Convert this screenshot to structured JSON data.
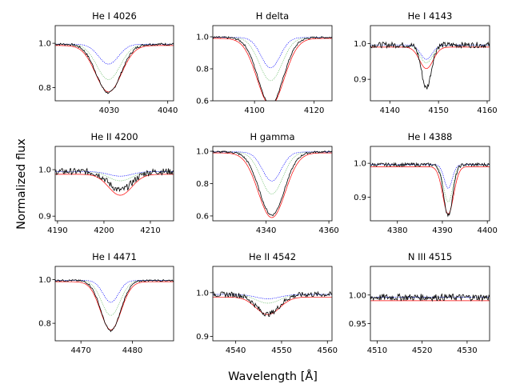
{
  "chart_data": {
    "type": "line",
    "figure_xlabel": "Wavelength [Å]",
    "figure_ylabel": "Normalized flux",
    "series_styles": [
      {
        "name": "observed",
        "color": "#000000",
        "style": "solid"
      },
      {
        "name": "model",
        "color": "#ff0000",
        "style": "solid"
      },
      {
        "name": "model-alt",
        "color": "#0000ff",
        "style": "dotted"
      },
      {
        "name": "model-alt2",
        "color": "#6fbf6f",
        "style": "dotted"
      }
    ],
    "panels": [
      {
        "title": "He I 4026",
        "xlim": [
          4020.8,
          4041
        ],
        "ylim": [
          0.74,
          1.08
        ],
        "xticks": [
          4030,
          4040
        ],
        "xticklabels": [
          "4030",
          "4040"
        ],
        "yticks": [
          0.8,
          1.0
        ],
        "yticklabels": [
          "0.8",
          "1.0"
        ],
        "center": 4029.9,
        "lines": {
          "observed": [
            0.22,
            2.1,
            0.005
          ],
          "model": [
            0.21,
            2.2,
            0
          ],
          "model-alt": [
            0.09,
            1.7,
            0
          ],
          "model-alt2": [
            0.16,
            2.0,
            0
          ]
        }
      },
      {
        "title": "H delta",
        "xlim": [
          4086,
          4126
        ],
        "ylim": [
          0.6,
          1.07
        ],
        "xticks": [
          4100,
          4120
        ],
        "xticklabels": [
          "4100",
          "4120"
        ],
        "yticks": [
          0.6,
          0.8,
          1.0
        ],
        "yticklabels": [
          "0.6",
          "0.8",
          "1.0"
        ],
        "center": 4105.4,
        "lines": {
          "observed": [
            0.42,
            4.2,
            0.006
          ],
          "model": [
            0.42,
            4.5,
            0
          ],
          "model-alt": [
            0.19,
            3.2,
            0
          ],
          "model-alt2": [
            0.27,
            3.8,
            0
          ]
        }
      },
      {
        "title": "He I 4143",
        "xlim": [
          4136,
          4160.5
        ],
        "ylim": [
          0.84,
          1.05
        ],
        "xticks": [
          4140,
          4150,
          4160
        ],
        "xticklabels": [
          "4140",
          "4150",
          "4160"
        ],
        "yticks": [
          0.9,
          1.0
        ],
        "yticklabels": [
          "0.9",
          "1.0"
        ],
        "center": 4147.5,
        "lines": {
          "observed": [
            0.12,
            1.0,
            0.008
          ],
          "model": [
            0.06,
            1.4,
            0
          ],
          "model-alt": [
            0.04,
            1.2,
            0
          ],
          "model-alt2": [
            0.05,
            1.3,
            0
          ]
        }
      },
      {
        "title": "He II 4200",
        "xlim": [
          4189.5,
          4215
        ],
        "ylim": [
          0.89,
          1.05
        ],
        "xticks": [
          4190,
          4200,
          4210
        ],
        "xticklabels": [
          "4190",
          "4200",
          "4210"
        ],
        "yticks": [
          0.9,
          1.0
        ],
        "yticklabels": [
          "0.9",
          "1.0"
        ],
        "center": 4203.5,
        "lines": {
          "observed": [
            0.04,
            2.5,
            0.007
          ],
          "model": [
            0.045,
            2.5,
            0
          ],
          "model-alt": [
            0.01,
            2.5,
            0
          ],
          "model-alt2": [
            0.02,
            2.5,
            0
          ]
        }
      },
      {
        "title": "H gamma",
        "xlim": [
          4323,
          4361
        ],
        "ylim": [
          0.57,
          1.03
        ],
        "xticks": [
          4340,
          4360
        ],
        "xticklabels": [
          "4340",
          "4360"
        ],
        "yticks": [
          0.6,
          0.8,
          1.0
        ],
        "yticklabels": [
          "0.6",
          "0.8",
          "1.0"
        ],
        "center": 4341.8,
        "lines": {
          "observed": [
            0.39,
            4.0,
            0.006
          ],
          "model": [
            0.4,
            4.3,
            0
          ],
          "model-alt": [
            0.18,
            3.0,
            0
          ],
          "model-alt2": [
            0.26,
            3.5,
            0
          ]
        }
      },
      {
        "title": "He I 4388",
        "xlim": [
          4374,
          4400.5
        ],
        "ylim": [
          0.83,
          1.05
        ],
        "xticks": [
          4380,
          4390,
          4400
        ],
        "xticklabels": [
          "4380",
          "4390",
          "4400"
        ],
        "yticks": [
          0.9,
          1.0
        ],
        "yticklabels": [
          "0.9",
          "1.0"
        ],
        "center": 4391.3,
        "lines": {
          "observed": [
            0.15,
            1.0,
            0.005
          ],
          "model": [
            0.14,
            1.2,
            0
          ],
          "model-alt": [
            0.07,
            0.9,
            0
          ],
          "model-alt2": [
            0.11,
            1.0,
            0
          ]
        }
      },
      {
        "title": "He I 4471",
        "xlim": [
          4465,
          4488
        ],
        "ylim": [
          0.72,
          1.06
        ],
        "xticks": [
          4470,
          4480
        ],
        "xticklabels": [
          "4470",
          "4480"
        ],
        "yticks": [
          0.8,
          1.0
        ],
        "yticklabels": [
          "0.8",
          "1.0"
        ],
        "center": 4475.8,
        "lines": {
          "observed": [
            0.23,
            1.9,
            0.004
          ],
          "model": [
            0.22,
            2.0,
            0
          ],
          "model-alt": [
            0.1,
            1.5,
            0
          ],
          "model-alt2": [
            0.16,
            1.8,
            0
          ]
        }
      },
      {
        "title": "He II 4542",
        "xlim": [
          4535,
          4561
        ],
        "ylim": [
          0.89,
          1.06
        ],
        "xticks": [
          4540,
          4550,
          4560
        ],
        "xticklabels": [
          "4540",
          "4550",
          "4560"
        ],
        "yticks": [
          0.9,
          1.0
        ],
        "yticklabels": [
          "0.9",
          "1.0"
        ],
        "center": 4547,
        "lines": {
          "observed": [
            0.045,
            2.5,
            0.006
          ],
          "model": [
            0.04,
            2.6,
            0
          ],
          "model-alt": [
            0.01,
            2.6,
            0
          ],
          "model-alt2": [
            0.02,
            2.6,
            0
          ]
        }
      },
      {
        "title": "N III 4515",
        "xlim": [
          4508.5,
          4535
        ],
        "ylim": [
          0.92,
          1.05
        ],
        "xticks": [
          4510,
          4520,
          4530
        ],
        "xticklabels": [
          "4510",
          "4520",
          "4530"
        ],
        "yticks": [
          0.95,
          1.0
        ],
        "yticklabels": [
          "0.95",
          "1.00"
        ],
        "center": 4520,
        "lines": {
          "observed": [
            0.0,
            2.0,
            0.006
          ],
          "model": [
            0.0,
            2.0,
            0
          ],
          "model-alt": [
            0.0,
            2.0,
            0
          ],
          "model-alt2": [
            0.0,
            2.0,
            0
          ]
        }
      }
    ]
  }
}
